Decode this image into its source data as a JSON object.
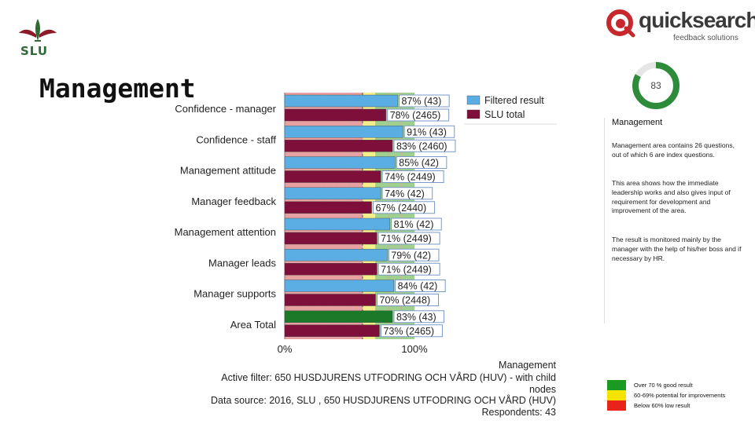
{
  "header": {
    "org_logo_text": "SLU",
    "page_title": "Management",
    "brand_name": "quicksearch",
    "brand_tagline": "feedback solutions"
  },
  "gauge": {
    "value": "83",
    "fraction": 0.83,
    "color": "#2e8b3a"
  },
  "info_panel": {
    "title": "Management",
    "paragraphs": [
      "Management area contains 26 questions, out of which 6 are index questions.",
      "This area shows how the immediate leadership works and also gives input of requirement for development and improvement of the area.",
      "The result is monitored mainly by the manager with the help of his/her boss and if necessary by HR."
    ]
  },
  "chart_data": {
    "type": "bar",
    "orientation": "horizontal",
    "categories": [
      "Confidence - manager",
      "Confidence - staff",
      "Management attitude",
      "Manager feedback",
      "Management attention",
      "Manager leads",
      "Manager supports",
      "Area Total"
    ],
    "series": [
      {
        "name": "Filtered result",
        "color": "#5aaee3",
        "values": [
          87,
          91,
          85,
          74,
          81,
          79,
          84,
          83
        ],
        "labels": [
          "87% (43)",
          "91% (43)",
          "85% (42)",
          "74% (42)",
          "81% (42)",
          "79% (42)",
          "84% (42)",
          "83% (43)"
        ]
      },
      {
        "name": "SLU total",
        "color": "#7d0f3a",
        "values": [
          78,
          83,
          74,
          67,
          71,
          71,
          70,
          73
        ],
        "labels": [
          "78% (2465)",
          "83% (2460)",
          "74% (2449)",
          "67% (2440)",
          "71% (2449)",
          "71% (2449)",
          "70% (2448)",
          "73% (2465)"
        ]
      }
    ],
    "area_total_color": "#1a7a2a",
    "xlim": [
      0,
      100
    ],
    "x_tick_labels": [
      "0%",
      "100%"
    ],
    "background_bands": [
      {
        "from": 0,
        "to": 60,
        "color": "#e8a0a0"
      },
      {
        "from": 60,
        "to": 70,
        "color": "#f3ef8a"
      },
      {
        "from": 70,
        "to": 100,
        "color": "#9fd08e"
      }
    ],
    "legend_position": "top-right",
    "grid": true
  },
  "footer": {
    "area_label": "Management",
    "active_filter": "Active filter: 650 HUSDJURENS UTFODRING OCH VÅRD (HUV) - with child",
    "active_filter_cont": "nodes",
    "data_source": "Data source: 2016, SLU , 650 HUSDJURENS UTFODRING OCH VÅRD (HUV)",
    "respondents": "Respondents: 43"
  },
  "color_key": [
    {
      "color": "#1a9a20",
      "label": "Over 70 % good result"
    },
    {
      "color": "#f4e400",
      "label": "60-69% potential for improvements"
    },
    {
      "color": "#e8241a",
      "label": "Below 60% low result"
    }
  ]
}
